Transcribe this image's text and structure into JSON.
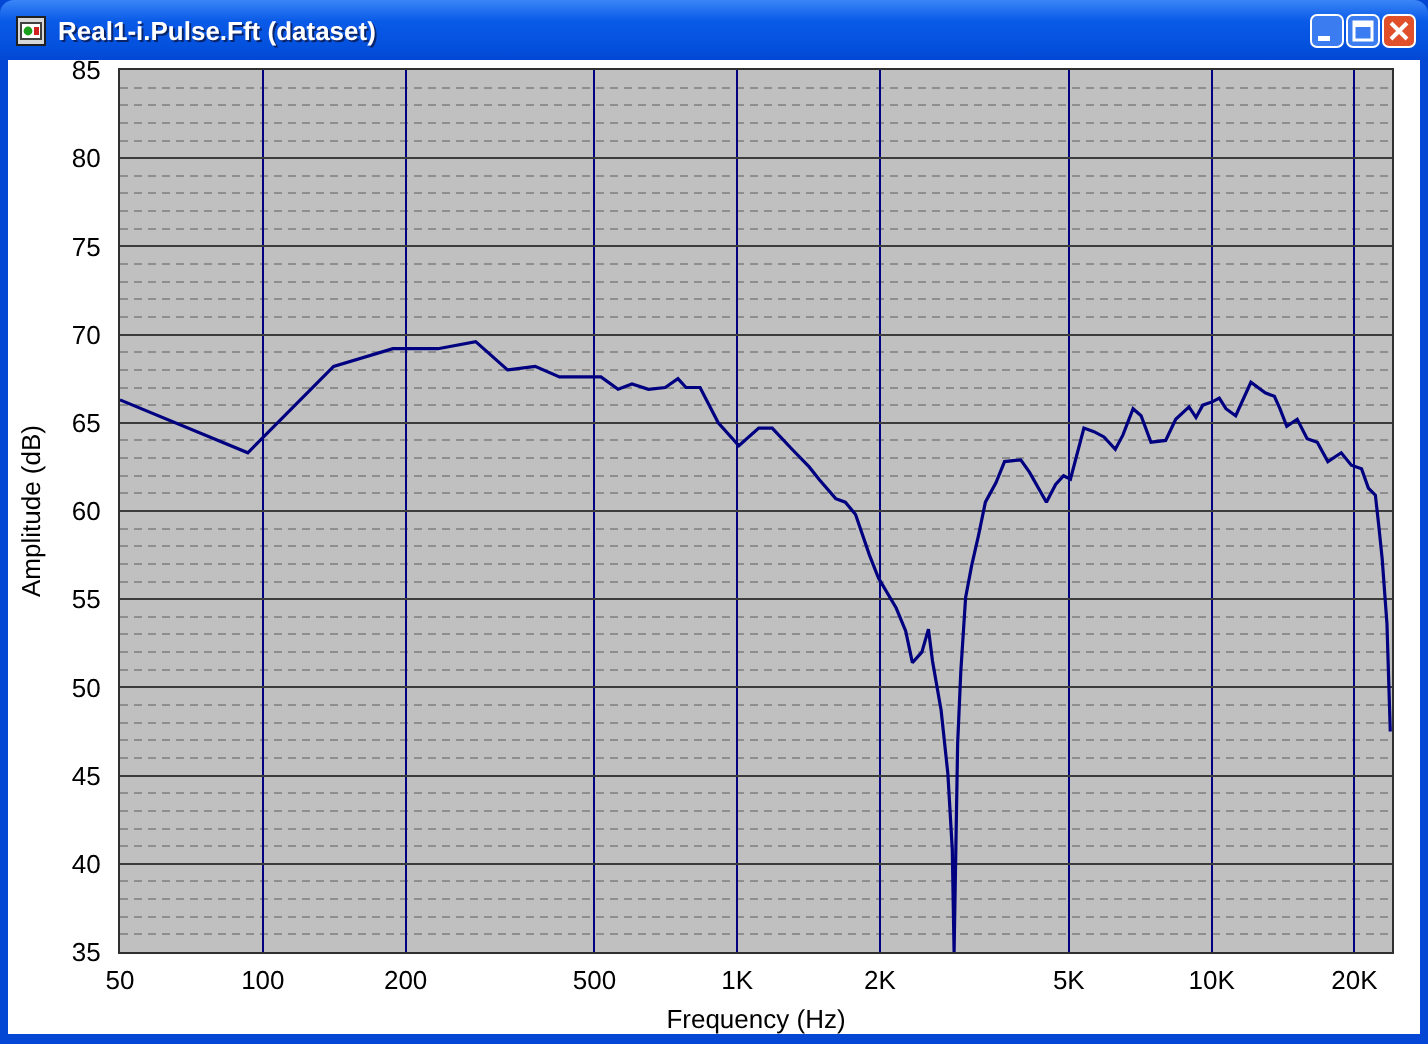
{
  "chart_data": {
    "type": "line",
    "title": "Real1-i.Pulse.Fft (dataset)",
    "xlabel": "Frequency (Hz)",
    "ylabel": "Amplitude (dB)",
    "x": [
      50,
      93,
      141,
      188,
      234,
      281,
      328,
      375,
      422,
      469,
      516,
      561,
      600,
      650,
      705,
      750,
      780,
      835,
      912,
      1008,
      1110,
      1185,
      1305,
      1418,
      1487,
      1613,
      1690,
      1776,
      1900,
      1985,
      2163,
      2265,
      2340,
      2450,
      2530,
      2580,
      2690,
      2780,
      2840,
      2865,
      2915,
      2960,
      3030,
      3120,
      3225,
      3335,
      3510,
      3660,
      3960,
      4130,
      4485,
      4690,
      4875,
      5040,
      5380,
      5650,
      5930,
      6266,
      6500,
      6830,
      7100,
      7450,
      8000,
      8400,
      8960,
      9270,
      9580,
      10050,
      10380,
      10720,
      11240,
      12100,
      12970,
      13560,
      13930,
      14400,
      15150,
      15900,
      16700,
      17580,
      18760,
      19700,
      20700,
      21400,
      22140,
      22500,
      22880,
      23420,
      23800
    ],
    "series": [
      {
        "color": "#000080",
        "values": [
          66.3,
          63.3,
          68.2,
          69.2,
          69.2,
          69.6,
          68.0,
          68.2,
          67.6,
          67.6,
          67.6,
          66.9,
          67.2,
          66.9,
          67.0,
          67.5,
          67.0,
          67.0,
          65.0,
          63.7,
          64.7,
          64.7,
          63.5,
          62.5,
          61.8,
          60.7,
          60.5,
          59.8,
          57.5,
          56.2,
          54.5,
          53.2,
          51.4,
          52.0,
          53.3,
          51.5,
          48.7,
          45.1,
          40.8,
          35.0,
          46.8,
          50.9,
          55.1,
          56.9,
          58.6,
          60.5,
          61.6,
          62.8,
          62.9,
          62.2,
          60.5,
          61.5,
          62.0,
          61.8,
          64.7,
          64.5,
          64.2,
          63.5,
          64.3,
          65.8,
          65.4,
          63.9,
          64.0,
          65.2,
          65.9,
          65.3,
          66.0,
          66.2,
          66.4,
          65.8,
          65.4,
          67.3,
          66.7,
          66.5,
          65.8,
          64.8,
          65.2,
          64.1,
          63.9,
          62.8,
          63.3,
          62.6,
          62.4,
          61.3,
          60.9,
          59.2,
          57.3,
          53.6,
          47.5
        ]
      }
    ],
    "xlim": [
      50,
      24000
    ],
    "xticks": [
      50,
      100,
      200,
      500,
      {
        "value": 1000,
        "label": "1K"
      },
      {
        "value": 2000,
        "label": "2K"
      },
      {
        "value": 5000,
        "label": "5K"
      },
      {
        "value": 10000,
        "label": "10K"
      },
      {
        "value": 20000,
        "label": "20K"
      }
    ],
    "ylim": [
      35,
      85
    ],
    "yticks": [
      35,
      {
        "value": 36,
        "label": null
      },
      {
        "value": 37,
        "label": null
      },
      {
        "value": 38,
        "label": null
      },
      {
        "value": 39,
        "label": null
      },
      40,
      {
        "value": 41,
        "label": null
      },
      {
        "value": 42,
        "label": null
      },
      {
        "value": 43,
        "label": null
      },
      {
        "value": 44,
        "label": null
      },
      45,
      {
        "value": 46,
        "label": null
      },
      {
        "value": 47,
        "label": null
      },
      {
        "value": 48,
        "label": null
      },
      {
        "value": 49,
        "label": null
      },
      50,
      {
        "value": 51,
        "label": null
      },
      {
        "value": 52,
        "label": null
      },
      {
        "value": 53,
        "label": null
      },
      {
        "value": 54,
        "label": null
      },
      55,
      {
        "value": 56,
        "label": null
      },
      {
        "value": 57,
        "label": null
      },
      {
        "value": 58,
        "label": null
      },
      {
        "value": 59,
        "label": null
      },
      60,
      {
        "value": 61,
        "label": null
      },
      {
        "value": 62,
        "label": null
      },
      {
        "value": 63,
        "label": null
      },
      {
        "value": 64,
        "label": null
      },
      65,
      {
        "value": 66,
        "label": null
      },
      {
        "value": 67,
        "label": null
      },
      {
        "value": 68,
        "label": null
      },
      {
        "value": 69,
        "label": null
      },
      70,
      {
        "value": 71,
        "label": null
      },
      {
        "value": 72,
        "label": null
      },
      {
        "value": 73,
        "label": null
      },
      {
        "value": 74,
        "label": null
      },
      75,
      {
        "value": 76,
        "label": null
      },
      {
        "value": 77,
        "label": null
      },
      {
        "value": 78,
        "label": null
      },
      {
        "value": 79,
        "label": null
      },
      80,
      {
        "value": 81,
        "label": null
      },
      {
        "value": 82,
        "label": null
      },
      {
        "value": 83,
        "label": null
      },
      {
        "value": 84,
        "label": null
      },
      85
    ],
    "log": "x",
    "grid": true
  }
}
